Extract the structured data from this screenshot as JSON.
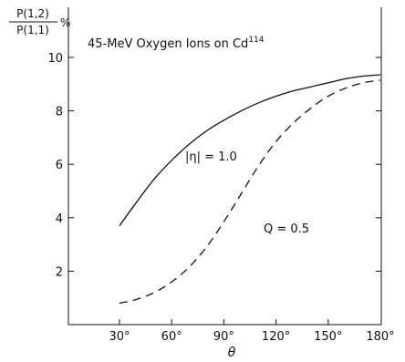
{
  "chart_data": {
    "type": "line",
    "title": "45-MeV Oxygen Ions on Cd",
    "title_superscript": "114",
    "ylabel_numerator": "P(1,2)",
    "ylabel_denominator": "P(1,1)",
    "ylabel_unit": "%",
    "xlabel": "θ",
    "x_unit": "degrees",
    "xlim": [
      0,
      180
    ],
    "ylim": [
      0,
      11
    ],
    "x_ticks": [
      30,
      60,
      90,
      120,
      150,
      180
    ],
    "x_tick_labels": [
      "30°",
      "60°",
      "90°",
      "120°",
      "150°",
      "180°"
    ],
    "y_ticks": [
      2,
      4,
      6,
      8,
      10
    ],
    "y_tick_labels": [
      "2",
      "4",
      "6",
      "8",
      "10"
    ],
    "grid": false,
    "series": [
      {
        "name": "|η| = 1.0",
        "style": "solid",
        "x": [
          30,
          40,
          50,
          60,
          70,
          80,
          90,
          100,
          110,
          120,
          130,
          140,
          150,
          160,
          170,
          180
        ],
        "y": [
          3.7,
          4.6,
          5.45,
          6.15,
          6.75,
          7.25,
          7.65,
          8.0,
          8.3,
          8.55,
          8.75,
          8.9,
          9.05,
          9.2,
          9.3,
          9.35
        ]
      },
      {
        "name": "Q = 0.5",
        "style": "dashed",
        "x": [
          30,
          40,
          50,
          60,
          70,
          80,
          90,
          100,
          110,
          120,
          130,
          140,
          150,
          160,
          170,
          180
        ],
        "y": [
          0.8,
          0.95,
          1.2,
          1.6,
          2.15,
          2.9,
          3.85,
          4.9,
          5.95,
          6.85,
          7.55,
          8.1,
          8.55,
          8.85,
          9.05,
          9.15
        ]
      }
    ]
  }
}
